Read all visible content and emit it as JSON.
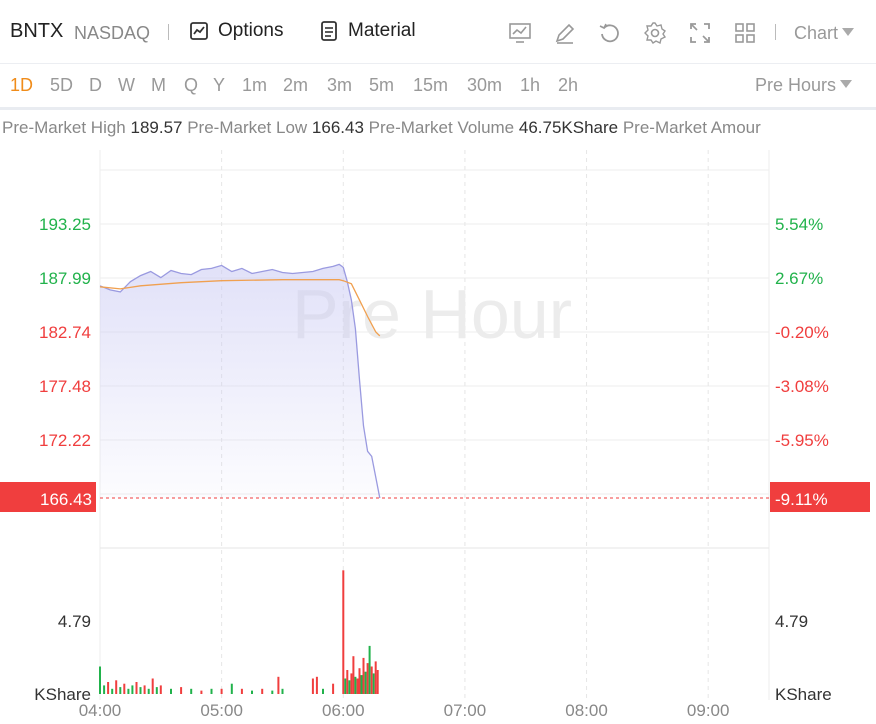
{
  "header": {
    "ticker": "BNTX",
    "exchange": "NASDAQ",
    "options_label": "Options",
    "material_label": "Material",
    "chart_selector": "Chart"
  },
  "toolbar_icons": [
    "indicator-icon",
    "draw-icon",
    "reset-icon",
    "gear-icon",
    "fullscreen-icon",
    "layout-icon"
  ],
  "periods": [
    "1D",
    "5D",
    "D",
    "W",
    "M",
    "Q",
    "Y",
    "1m",
    "2m",
    "3m",
    "5m",
    "15m",
    "30m",
    "1h",
    "2h"
  ],
  "active_period": "1D",
  "session_selector": "Pre Hours",
  "stats": [
    {
      "label": "Pre-Market High",
      "value": "189.57"
    },
    {
      "label": "Pre-Market Low",
      "value": "166.43"
    },
    {
      "label": "Pre-Market Volume",
      "value": "46.75KShare"
    },
    {
      "label": "Pre-Market Amour",
      "value": ""
    }
  ],
  "watermark": "Pre Hour",
  "colors": {
    "up": "#21b24b",
    "down": "#f03e3e",
    "price_line": "#9a9ae0",
    "avg_line": "#f0a050",
    "active": "#f08c1a"
  },
  "chart_data": {
    "type": "line",
    "x_ticks": [
      "04:00",
      "05:00",
      "06:00",
      "07:00",
      "08:00",
      "09:00"
    ],
    "x_range": [
      "04:00",
      "09:30"
    ],
    "price_ticks": [
      "193.25",
      "187.99",
      "182.74",
      "177.48",
      "172.22"
    ],
    "pct_ticks": [
      "5.54%",
      "2.67%",
      "-0.20%",
      "-3.08%",
      "-5.95%"
    ],
    "price_range": [
      166.43,
      193.25
    ],
    "current_price": "166.43",
    "current_pct": "-9.11%",
    "price_series": {
      "x": [
        "04:00",
        "04:05",
        "04:10",
        "04:15",
        "04:20",
        "04:25",
        "04:30",
        "04:35",
        "04:40",
        "04:45",
        "04:50",
        "04:55",
        "05:00",
        "05:05",
        "05:10",
        "05:15",
        "05:20",
        "05:25",
        "05:30",
        "05:35",
        "05:40",
        "05:45",
        "05:50",
        "05:55",
        "05:58",
        "06:00",
        "06:02",
        "06:04",
        "06:06",
        "06:08",
        "06:10",
        "06:12",
        "06:14",
        "06:16",
        "06:18"
      ],
      "y": [
        187.2,
        186.8,
        186.6,
        187.6,
        188.2,
        188.6,
        188.0,
        188.7,
        188.4,
        188.3,
        188.8,
        188.9,
        189.2,
        188.6,
        188.9,
        188.4,
        188.6,
        188.8,
        188.5,
        188.4,
        188.5,
        188.6,
        188.9,
        189.1,
        189.3,
        189.0,
        187.6,
        185.8,
        183.0,
        178.0,
        173.5,
        171.0,
        170.5,
        168.5,
        166.43
      ]
    },
    "avg_series": {
      "x": [
        "04:00",
        "04:10",
        "04:20",
        "04:40",
        "05:00",
        "05:30",
        "05:58",
        "06:00",
        "06:04",
        "06:08",
        "06:12",
        "06:16",
        "06:18"
      ],
      "y": [
        187.1,
        186.9,
        187.2,
        187.5,
        187.7,
        187.8,
        187.8,
        187.7,
        187.4,
        185.8,
        184.2,
        182.7,
        182.3
      ]
    },
    "volume_label": "KShare",
    "volume_tick": "4.79",
    "volume_max": 8.5,
    "volume": {
      "x": [
        "04:00",
        "04:02",
        "04:04",
        "04:06",
        "04:08",
        "04:10",
        "04:12",
        "04:14",
        "04:16",
        "04:18",
        "04:20",
        "04:22",
        "04:24",
        "04:26",
        "04:28",
        "04:30",
        "04:35",
        "04:40",
        "04:45",
        "04:50",
        "04:55",
        "05:00",
        "05:05",
        "05:10",
        "05:15",
        "05:20",
        "05:25",
        "05:28",
        "05:30",
        "05:45",
        "05:47",
        "05:50",
        "05:55",
        "06:00",
        "06:01",
        "06:02",
        "06:03",
        "06:04",
        "06:05",
        "06:06",
        "06:07",
        "06:08",
        "06:09",
        "06:10",
        "06:11",
        "06:12",
        "06:13",
        "06:14",
        "06:15",
        "06:16",
        "06:17"
      ],
      "v": [
        1.6,
        0.5,
        0.7,
        0.3,
        0.8,
        0.4,
        0.6,
        0.3,
        0.5,
        0.7,
        0.4,
        0.5,
        0.3,
        0.9,
        0.4,
        0.5,
        0.3,
        0.4,
        0.3,
        0.2,
        0.3,
        0.3,
        0.6,
        0.3,
        0.2,
        0.3,
        0.2,
        1.0,
        0.3,
        0.9,
        1.0,
        0.3,
        0.6,
        7.2,
        0.9,
        1.4,
        0.8,
        1.2,
        2.2,
        1.0,
        0.9,
        1.5,
        1.1,
        2.1,
        1.3,
        1.8,
        2.8,
        1.6,
        1.2,
        1.9,
        1.4
      ],
      "up": [
        true,
        true,
        false,
        true,
        false,
        true,
        false,
        true,
        true,
        false,
        true,
        false,
        true,
        false,
        true,
        false,
        true,
        false,
        true,
        false,
        true,
        false,
        true,
        false,
        true,
        false,
        true,
        false,
        true,
        false,
        false,
        true,
        false,
        false,
        true,
        false,
        true,
        false,
        false,
        true,
        false,
        false,
        true,
        false,
        true,
        false,
        true,
        false,
        true,
        false,
        false
      ]
    }
  }
}
